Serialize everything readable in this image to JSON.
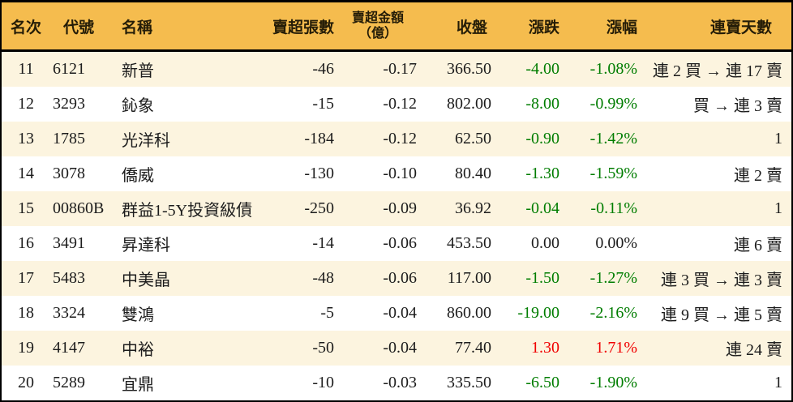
{
  "colors": {
    "header_bg": "#F5BC4E",
    "row_alt_bg": "#FCF4DF",
    "up": "#F00000",
    "down": "#007D00",
    "border": "#000000"
  },
  "table": {
    "columns": [
      {
        "key": "rank",
        "label": "名次"
      },
      {
        "key": "code",
        "label": "代號"
      },
      {
        "key": "name",
        "label": "名稱"
      },
      {
        "key": "sell_volume",
        "label": "賣超張數"
      },
      {
        "key": "sell_amount",
        "label": "賣超金額",
        "label2": "（億）"
      },
      {
        "key": "close",
        "label": "收盤"
      },
      {
        "key": "change",
        "label": "漲跌"
      },
      {
        "key": "change_pct",
        "label": "漲幅"
      },
      {
        "key": "streak",
        "label": "連賣天數"
      }
    ],
    "rows": [
      {
        "rank": "11",
        "code": "6121",
        "name": "新普",
        "sell_volume": "-46",
        "sell_amount": "-0.17",
        "close": "366.50",
        "change": "-4.00",
        "change_pct": "-1.08%",
        "streak": "連 2 買 → 連 17 賣",
        "trend": "down"
      },
      {
        "rank": "12",
        "code": "3293",
        "name": "鈊象",
        "sell_volume": "-15",
        "sell_amount": "-0.12",
        "close": "802.00",
        "change": "-8.00",
        "change_pct": "-0.99%",
        "streak": "買 → 連 3 賣",
        "trend": "down"
      },
      {
        "rank": "13",
        "code": "1785",
        "name": "光洋科",
        "sell_volume": "-184",
        "sell_amount": "-0.12",
        "close": "62.50",
        "change": "-0.90",
        "change_pct": "-1.42%",
        "streak": "1",
        "trend": "down"
      },
      {
        "rank": "14",
        "code": "3078",
        "name": "僑威",
        "sell_volume": "-130",
        "sell_amount": "-0.10",
        "close": "80.40",
        "change": "-1.30",
        "change_pct": "-1.59%",
        "streak": "連 2 賣",
        "trend": "down"
      },
      {
        "rank": "15",
        "code": "00860B",
        "name": "群益1-5Y投資級債",
        "sell_volume": "-250",
        "sell_amount": "-0.09",
        "close": "36.92",
        "change": "-0.04",
        "change_pct": "-0.11%",
        "streak": "1",
        "trend": "down"
      },
      {
        "rank": "16",
        "code": "3491",
        "name": "昇達科",
        "sell_volume": "-14",
        "sell_amount": "-0.06",
        "close": "453.50",
        "change": "0.00",
        "change_pct": "0.00%",
        "streak": "連 6 賣",
        "trend": "flat"
      },
      {
        "rank": "17",
        "code": "5483",
        "name": "中美晶",
        "sell_volume": "-48",
        "sell_amount": "-0.06",
        "close": "117.00",
        "change": "-1.50",
        "change_pct": "-1.27%",
        "streak": "連 3 買 → 連 3 賣",
        "trend": "down"
      },
      {
        "rank": "18",
        "code": "3324",
        "name": "雙鴻",
        "sell_volume": "-5",
        "sell_amount": "-0.04",
        "close": "860.00",
        "change": "-19.00",
        "change_pct": "-2.16%",
        "streak": "連 9 買 → 連 5 賣",
        "trend": "down"
      },
      {
        "rank": "19",
        "code": "4147",
        "name": "中裕",
        "sell_volume": "-50",
        "sell_amount": "-0.04",
        "close": "77.40",
        "change": "1.30",
        "change_pct": "1.71%",
        "streak": "連 24 賣",
        "trend": "up"
      },
      {
        "rank": "20",
        "code": "5289",
        "name": "宜鼎",
        "sell_volume": "-10",
        "sell_amount": "-0.03",
        "close": "335.50",
        "change": "-6.50",
        "change_pct": "-1.90%",
        "streak": "1",
        "trend": "down"
      }
    ]
  }
}
